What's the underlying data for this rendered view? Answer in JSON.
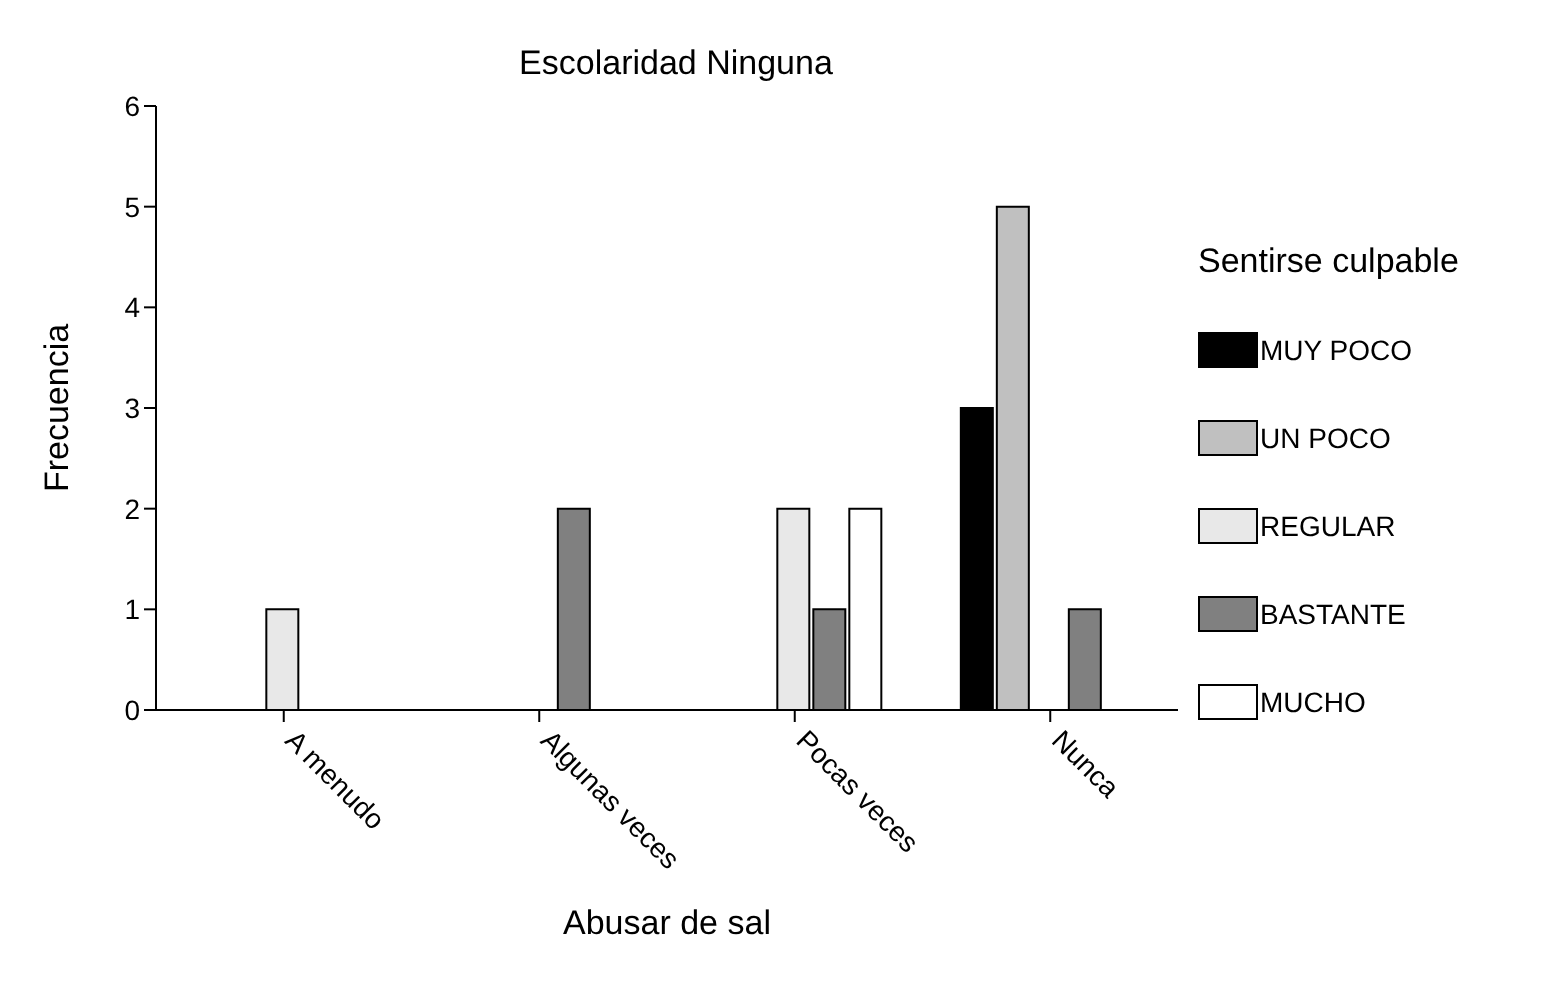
{
  "chart_data": {
    "type": "bar",
    "title": "Escolaridad Ninguna",
    "xlabel": "Abusar de sal",
    "ylabel": "Frecuencia",
    "legend_title": "Sentirse culpable",
    "categories": [
      "A menudo",
      "Algunas veces",
      "Pocas veces",
      "Nunca"
    ],
    "series": [
      {
        "name": "MUY POCO",
        "color": "#000000",
        "values": [
          null,
          null,
          null,
          3
        ]
      },
      {
        "name": "UN POCO",
        "color": "#c0c0c0",
        "values": [
          null,
          null,
          null,
          5
        ]
      },
      {
        "name": "REGULAR",
        "color": "#e8e8e8",
        "values": [
          1,
          null,
          2,
          null
        ]
      },
      {
        "name": "BASTANTE",
        "color": "#808080",
        "values": [
          null,
          2,
          1,
          1
        ]
      },
      {
        "name": "MUCHO",
        "color": "#ffffff",
        "values": [
          null,
          null,
          2,
          null
        ]
      }
    ],
    "ylim": [
      0,
      6
    ],
    "yticks": [
      0,
      1,
      2,
      3,
      4,
      5,
      6
    ],
    "legend": "right"
  }
}
